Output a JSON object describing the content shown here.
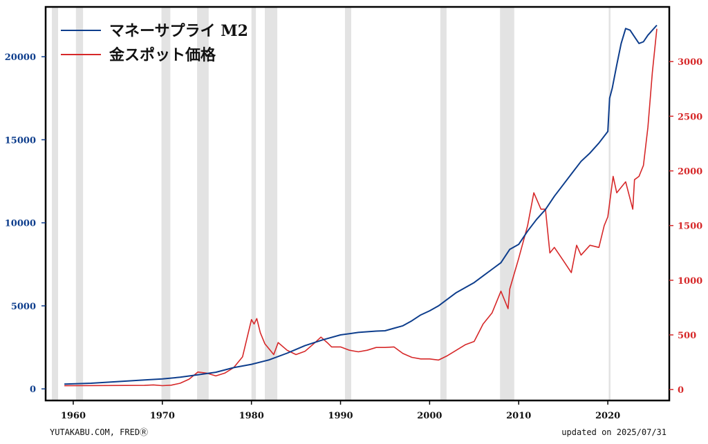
{
  "chart_data": {
    "type": "line",
    "title": "",
    "xlabel": "",
    "ylabel_left": "",
    "ylabel_right": "",
    "xlim": [
      1956.9,
      2026.9
    ],
    "ylim_left": [
      -700,
      23000
    ],
    "ylim_right": [
      -100,
      3500
    ],
    "x_ticks": [
      1960,
      1970,
      1980,
      1990,
      2000,
      2010,
      2020
    ],
    "y_left_ticks": [
      0,
      5000,
      10000,
      15000,
      20000
    ],
    "y_right_ticks": [
      0,
      500,
      1000,
      1500,
      2000,
      2500,
      3000
    ],
    "grid": false,
    "legend_position": "top-left",
    "colors": {
      "m2": "#0d3d8c",
      "gold": "#d62728",
      "recession": "#e3e3e3"
    },
    "recession_bands": [
      [
        1957.6,
        1958.3
      ],
      [
        1960.3,
        1961.1
      ],
      [
        1969.9,
        1970.9
      ],
      [
        1973.9,
        1975.2
      ],
      [
        1980.0,
        1980.5
      ],
      [
        1981.5,
        1982.9
      ],
      [
        1990.5,
        1991.2
      ],
      [
        2001.2,
        2001.9
      ],
      [
        2007.9,
        2009.5
      ],
      [
        2020.1,
        2020.3
      ]
    ],
    "series": [
      {
        "name": "マネーサプライ M2",
        "axis": "left",
        "points": [
          [
            1959.0,
            287
          ],
          [
            1962.0,
            340
          ],
          [
            1965.0,
            440
          ],
          [
            1968.0,
            540
          ],
          [
            1970.0,
            600
          ],
          [
            1972.0,
            700
          ],
          [
            1974.0,
            850
          ],
          [
            1976.0,
            1000
          ],
          [
            1978.0,
            1280
          ],
          [
            1980.0,
            1480
          ],
          [
            1982.0,
            1750
          ],
          [
            1984.0,
            2150
          ],
          [
            1986.0,
            2600
          ],
          [
            1988.0,
            2950
          ],
          [
            1990.0,
            3250
          ],
          [
            1992.0,
            3400
          ],
          [
            1994.0,
            3480
          ],
          [
            1995.0,
            3500
          ],
          [
            1996.0,
            3650
          ],
          [
            1997.0,
            3800
          ],
          [
            1998.0,
            4100
          ],
          [
            1999.0,
            4450
          ],
          [
            2000.0,
            4700
          ],
          [
            2001.0,
            5000
          ],
          [
            2002.0,
            5400
          ],
          [
            2003.0,
            5800
          ],
          [
            2004.0,
            6100
          ],
          [
            2005.0,
            6400
          ],
          [
            2006.0,
            6800
          ],
          [
            2007.0,
            7200
          ],
          [
            2008.0,
            7600
          ],
          [
            2009.0,
            8400
          ],
          [
            2010.0,
            8700
          ],
          [
            2011.0,
            9500
          ],
          [
            2012.0,
            10200
          ],
          [
            2013.0,
            10800
          ],
          [
            2014.0,
            11600
          ],
          [
            2015.0,
            12300
          ],
          [
            2016.0,
            13000
          ],
          [
            2017.0,
            13700
          ],
          [
            2018.0,
            14200
          ],
          [
            2019.0,
            14800
          ],
          [
            2020.0,
            15500
          ],
          [
            2020.2,
            17500
          ],
          [
            2020.5,
            18100
          ],
          [
            2021.0,
            19500
          ],
          [
            2021.5,
            20800
          ],
          [
            2022.0,
            21700
          ],
          [
            2022.5,
            21600
          ],
          [
            2023.0,
            21200
          ],
          [
            2023.5,
            20800
          ],
          [
            2024.0,
            20900
          ],
          [
            2024.5,
            21300
          ],
          [
            2025.5,
            21900
          ]
        ]
      },
      {
        "name": "金スポット価格",
        "axis": "right",
        "points": [
          [
            1959.0,
            35
          ],
          [
            1968.0,
            38
          ],
          [
            1969.0,
            43
          ],
          [
            1970.0,
            36
          ],
          [
            1971.0,
            40
          ],
          [
            1972.0,
            58
          ],
          [
            1973.0,
            95
          ],
          [
            1974.0,
            160
          ],
          [
            1975.0,
            150
          ],
          [
            1976.0,
            125
          ],
          [
            1977.0,
            150
          ],
          [
            1978.0,
            200
          ],
          [
            1979.0,
            300
          ],
          [
            1980.0,
            640
          ],
          [
            1980.3,
            600
          ],
          [
            1980.6,
            650
          ],
          [
            1981.0,
            520
          ],
          [
            1981.5,
            420
          ],
          [
            1982.5,
            320
          ],
          [
            1983.0,
            430
          ],
          [
            1984.0,
            360
          ],
          [
            1985.0,
            320
          ],
          [
            1986.0,
            350
          ],
          [
            1987.0,
            420
          ],
          [
            1987.8,
            480
          ],
          [
            1988.5,
            430
          ],
          [
            1989.0,
            390
          ],
          [
            1990.0,
            390
          ],
          [
            1991.0,
            360
          ],
          [
            1992.0,
            345
          ],
          [
            1993.0,
            360
          ],
          [
            1994.0,
            385
          ],
          [
            1995.0,
            385
          ],
          [
            1996.0,
            390
          ],
          [
            1997.0,
            330
          ],
          [
            1998.0,
            295
          ],
          [
            1999.0,
            280
          ],
          [
            2000.0,
            280
          ],
          [
            2001.0,
            270
          ],
          [
            2002.0,
            310
          ],
          [
            2003.0,
            360
          ],
          [
            2004.0,
            410
          ],
          [
            2005.0,
            440
          ],
          [
            2006.0,
            600
          ],
          [
            2007.0,
            700
          ],
          [
            2008.0,
            900
          ],
          [
            2008.8,
            740
          ],
          [
            2009.0,
            920
          ],
          [
            2010.0,
            1200
          ],
          [
            2011.0,
            1500
          ],
          [
            2011.7,
            1800
          ],
          [
            2012.5,
            1650
          ],
          [
            2013.0,
            1650
          ],
          [
            2013.5,
            1250
          ],
          [
            2014.0,
            1300
          ],
          [
            2015.0,
            1180
          ],
          [
            2015.9,
            1070
          ],
          [
            2016.5,
            1320
          ],
          [
            2017.0,
            1230
          ],
          [
            2018.0,
            1320
          ],
          [
            2019.0,
            1300
          ],
          [
            2019.6,
            1500
          ],
          [
            2020.0,
            1580
          ],
          [
            2020.6,
            1950
          ],
          [
            2021.0,
            1800
          ],
          [
            2022.0,
            1900
          ],
          [
            2022.8,
            1650
          ],
          [
            2023.0,
            1920
          ],
          [
            2023.5,
            1950
          ],
          [
            2024.0,
            2050
          ],
          [
            2024.5,
            2400
          ],
          [
            2025.0,
            2900
          ],
          [
            2025.5,
            3300
          ]
        ]
      }
    ]
  },
  "legend": {
    "m2_label": "マネーサプライ M2",
    "gold_label": "金スポット価格"
  },
  "footer": {
    "source": "YUTAKABU.COM, FREDⓇ",
    "updated": "updated on 2025/07/31"
  }
}
